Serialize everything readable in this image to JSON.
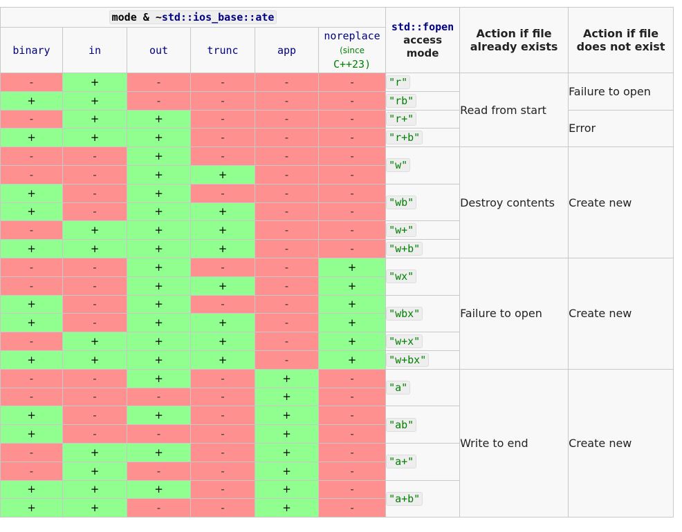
{
  "header": {
    "mode_kw": "mode & ~",
    "mode_ns": "std::ios_base::ate",
    "flags": [
      "binary",
      "in",
      "out",
      "trunc",
      "app",
      "noreplace"
    ],
    "since_prefix": "(since",
    "since_version": "C++23)",
    "fopen_fn": "std::fopen",
    "fopen_rest": "access mode",
    "exists": "Action if file already exists",
    "not_exists": "Action if file does not exist"
  },
  "symbols": {
    "yes": "+",
    "no": "-"
  },
  "colors": {
    "yes": "#90ff90",
    "no": "#ff9090"
  },
  "rows": [
    [
      0,
      1,
      0,
      0,
      0,
      0
    ],
    [
      1,
      1,
      0,
      0,
      0,
      0
    ],
    [
      0,
      1,
      1,
      0,
      0,
      0
    ],
    [
      1,
      1,
      1,
      0,
      0,
      0
    ],
    [
      0,
      0,
      1,
      0,
      0,
      0
    ],
    [
      0,
      0,
      1,
      1,
      0,
      0
    ],
    [
      1,
      0,
      1,
      0,
      0,
      0
    ],
    [
      1,
      0,
      1,
      1,
      0,
      0
    ],
    [
      0,
      1,
      1,
      1,
      0,
      0
    ],
    [
      1,
      1,
      1,
      1,
      0,
      0
    ],
    [
      0,
      0,
      1,
      0,
      0,
      1
    ],
    [
      0,
      0,
      1,
      1,
      0,
      1
    ],
    [
      1,
      0,
      1,
      0,
      0,
      1
    ],
    [
      1,
      0,
      1,
      1,
      0,
      1
    ],
    [
      0,
      1,
      1,
      1,
      0,
      1
    ],
    [
      1,
      1,
      1,
      1,
      0,
      1
    ],
    [
      0,
      0,
      1,
      0,
      1,
      0
    ],
    [
      0,
      0,
      0,
      0,
      1,
      0
    ],
    [
      1,
      0,
      1,
      0,
      1,
      0
    ],
    [
      1,
      0,
      0,
      0,
      1,
      0
    ],
    [
      0,
      1,
      1,
      0,
      1,
      0
    ],
    [
      0,
      1,
      0,
      0,
      1,
      0
    ],
    [
      1,
      1,
      1,
      0,
      1,
      0
    ],
    [
      1,
      1,
      0,
      0,
      1,
      0
    ]
  ],
  "modes": [
    {
      "label": "\"r\"",
      "row": 0,
      "span": 1
    },
    {
      "label": "\"rb\"",
      "row": 1,
      "span": 1
    },
    {
      "label": "\"r+\"",
      "row": 2,
      "span": 1
    },
    {
      "label": "\"r+b\"",
      "row": 3,
      "span": 1
    },
    {
      "label": "\"w\"",
      "row": 4,
      "span": 2
    },
    {
      "label": "\"wb\"",
      "row": 6,
      "span": 2
    },
    {
      "label": "\"w+\"",
      "row": 8,
      "span": 1
    },
    {
      "label": "\"w+b\"",
      "row": 9,
      "span": 1
    },
    {
      "label": "\"wx\"",
      "row": 10,
      "span": 2
    },
    {
      "label": "\"wbx\"",
      "row": 12,
      "span": 2
    },
    {
      "label": "\"w+x\"",
      "row": 14,
      "span": 1
    },
    {
      "label": "\"w+bx\"",
      "row": 15,
      "span": 1
    },
    {
      "label": "\"a\"",
      "row": 16,
      "span": 2
    },
    {
      "label": "\"ab\"",
      "row": 18,
      "span": 2
    },
    {
      "label": "\"a+\"",
      "row": 20,
      "span": 2
    },
    {
      "label": "\"a+b\"",
      "row": 22,
      "span": 2
    }
  ],
  "exists_actions": [
    {
      "text": "Read from start",
      "row": 0,
      "span": 4
    },
    {
      "text": "Destroy contents",
      "row": 4,
      "span": 6
    },
    {
      "text": "Failure to open",
      "row": 10,
      "span": 6
    },
    {
      "text": "Write to end",
      "row": 16,
      "span": 8
    }
  ],
  "not_exists_actions": [
    {
      "text": "Failure to open",
      "row": 0,
      "span": 2
    },
    {
      "text": "Error",
      "row": 2,
      "span": 2
    },
    {
      "text": "Create new",
      "row": 4,
      "span": 6
    },
    {
      "text": "Create new",
      "row": 10,
      "span": 6
    },
    {
      "text": "Create new",
      "row": 16,
      "span": 8
    }
  ]
}
